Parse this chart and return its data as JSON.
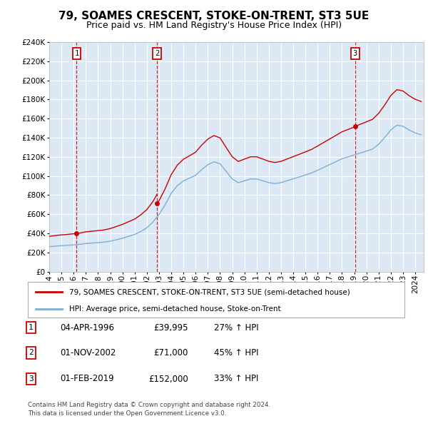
{
  "title": "79, SOAMES CRESCENT, STOKE-ON-TRENT, ST3 5UE",
  "subtitle": "Price paid vs. HM Land Registry's House Price Index (HPI)",
  "legend_line1": "79, SOAMES CRESCENT, STOKE-ON-TRENT, ST3 5UE (semi-detached house)",
  "legend_line2": "HPI: Average price, semi-detached house, Stoke-on-Trent",
  "footer1": "Contains HM Land Registry data © Crown copyright and database right 2024.",
  "footer2": "This data is licensed under the Open Government Licence v3.0.",
  "transactions": [
    {
      "num": 1,
      "date": "04-APR-1996",
      "price": "£39,995",
      "pct": "27% ↑ HPI",
      "year": 1996.25,
      "value": 39995
    },
    {
      "num": 2,
      "date": "01-NOV-2002",
      "price": "£71,000",
      "pct": "45% ↑ HPI",
      "year": 2002.83,
      "value": 71000
    },
    {
      "num": 3,
      "date": "01-FEB-2019",
      "price": "£152,000",
      "pct": "33% ↑ HPI",
      "year": 2019.08,
      "value": 152000
    }
  ],
  "vline_color": "#cc0000",
  "property_color": "#cc0000",
  "hpi_color": "#7bafd4",
  "background_color": "#ffffff",
  "plot_bg_color": "#dce9f5",
  "grid_color": "#ffffff",
  "ylim": [
    0,
    240000
  ],
  "ytick_step": 20000,
  "title_fontsize": 11,
  "subtitle_fontsize": 9,
  "tick_fontsize": 7.5,
  "xstart": 1994.0,
  "xend": 2024.7
}
